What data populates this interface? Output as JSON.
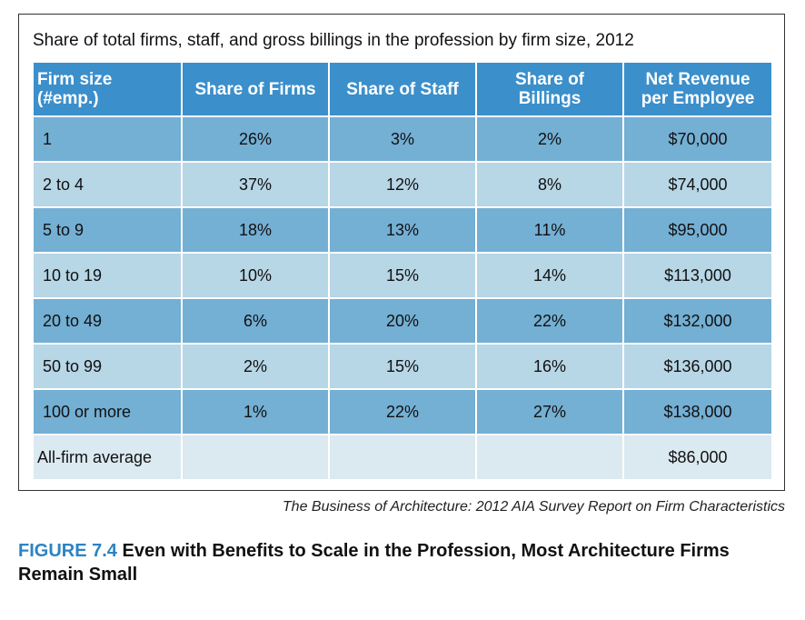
{
  "chart_data": {
    "type": "table",
    "title": "Share of total firms, staff, and gross billings in the profession by firm size, 2012",
    "columns": [
      "Firm size (#emp.)",
      "Share of Firms",
      "Share of Staff",
      "Share of Billings",
      "Net Revenue per Employee"
    ],
    "header_lines": [
      [
        "Firm size",
        "(#emp.)"
      ],
      [
        "Share of Firms"
      ],
      [
        "Share of Staff"
      ],
      [
        "Share of",
        "Billings"
      ],
      [
        "Net Revenue",
        "per Employee"
      ]
    ],
    "rows": [
      [
        "1",
        "26%",
        "3%",
        "2%",
        "$70,000"
      ],
      [
        "2 to 4",
        "37%",
        "12%",
        "8%",
        "$74,000"
      ],
      [
        "5 to 9",
        "18%",
        "13%",
        "11%",
        "$95,000"
      ],
      [
        "10 to 19",
        "10%",
        "15%",
        "14%",
        "$113,000"
      ],
      [
        "20 to 49",
        "6%",
        "20%",
        "22%",
        "$132,000"
      ],
      [
        "50 to 99",
        "2%",
        "15%",
        "16%",
        "$136,000"
      ],
      [
        "100 or more",
        "1%",
        "22%",
        "27%",
        "$138,000"
      ],
      [
        "All-firm average",
        "",
        "",
        "",
        "$86,000"
      ]
    ],
    "values": {
      "share_of_firms_pct": [
        26,
        37,
        18,
        10,
        6,
        2,
        1
      ],
      "share_of_staff_pct": [
        3,
        12,
        13,
        15,
        20,
        15,
        22
      ],
      "share_of_billings_pct": [
        2,
        8,
        11,
        14,
        22,
        16,
        27
      ],
      "net_revenue_per_employee_usd": [
        70000,
        74000,
        95000,
        113000,
        132000,
        136000,
        138000
      ],
      "all_firm_average_net_revenue_usd": 86000
    }
  },
  "source": "The Business of Architecture: 2012 AIA Survey Report on Firm Characteristics",
  "figure": {
    "number": "FIGURE 7.4",
    "caption": "Even with Benefits to Scale in the Profession, Most Architecture Firms Remain Small"
  }
}
